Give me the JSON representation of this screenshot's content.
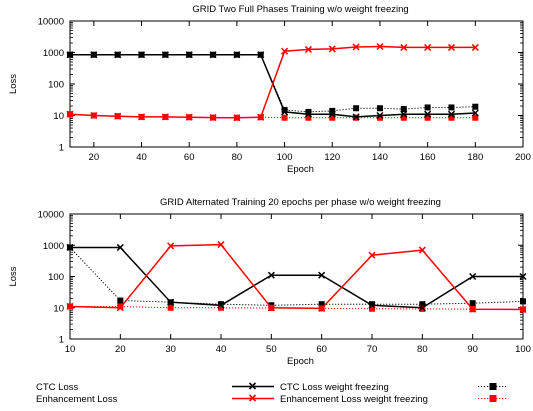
{
  "colors": {
    "ctc": "#000000",
    "enh": "#ff0000",
    "frame": "#000000"
  },
  "legend": {
    "left": [
      "CTC Loss",
      "Enhancement Loss"
    ],
    "right": [
      "CTC Loss weight freezing",
      "Enhancement Loss weight freezing"
    ]
  },
  "chart_data": [
    {
      "type": "line",
      "title": "GRID Two Full Phases Training w/o weight freezing",
      "xlabel": "Epoch",
      "ylabel": "Loss",
      "xlim": [
        10,
        200
      ],
      "ylim": [
        1,
        10000
      ],
      "yscale": "log",
      "xticks": [
        20,
        40,
        60,
        80,
        100,
        120,
        140,
        160,
        180,
        200
      ],
      "yticks": [
        1,
        10,
        100,
        1000,
        10000
      ],
      "ytick_labels": [
        "1",
        "10",
        "100",
        "1000",
        "10000"
      ],
      "grid": false,
      "series": [
        {
          "legend": "CTC Loss weight freezing",
          "color_key": "ctc",
          "style": "solid",
          "marker": "x",
          "x": [
            10,
            20,
            30,
            40,
            50,
            60,
            70,
            80,
            90,
            100,
            110,
            120,
            130,
            140,
            150,
            160,
            170,
            180
          ],
          "y": [
            850,
            850,
            850,
            850,
            850,
            850,
            850,
            850,
            850,
            13,
            11,
            11,
            9,
            10,
            11,
            11,
            11,
            12
          ]
        },
        {
          "legend": "Enhancement Loss weight freezing",
          "color_key": "enh",
          "style": "solid",
          "marker": "x",
          "x": [
            10,
            20,
            30,
            40,
            50,
            60,
            70,
            80,
            90,
            100,
            110,
            120,
            130,
            140,
            150,
            160,
            170,
            180
          ],
          "y": [
            11,
            10,
            9.5,
            9,
            9,
            8.8,
            8.6,
            8.5,
            8.8,
            1100,
            1250,
            1300,
            1500,
            1550,
            1450,
            1450,
            1450,
            1450
          ]
        },
        {
          "legend": "CTC Loss",
          "color_key": "ctc",
          "style": "dotted",
          "marker": "square",
          "x": [
            10,
            20,
            30,
            40,
            50,
            60,
            70,
            80,
            90,
            100,
            110,
            120,
            130,
            140,
            150,
            160,
            170,
            180
          ],
          "y": [
            850,
            850,
            850,
            850,
            850,
            850,
            850,
            850,
            850,
            15,
            13,
            14,
            17,
            17,
            16,
            18,
            18,
            19
          ]
        },
        {
          "legend": "Enhancement Loss",
          "color_key": "enh",
          "style": "dotted",
          "marker": "square",
          "x": [
            10,
            20,
            30,
            40,
            50,
            60,
            70,
            80,
            90,
            100,
            110,
            120,
            130,
            140,
            150,
            160,
            170,
            180
          ],
          "y": [
            11,
            10,
            9.5,
            9,
            9,
            8.8,
            8.6,
            8.5,
            8.8,
            8.5,
            8.5,
            8.5,
            8.5,
            8.5,
            8.5,
            8.5,
            8.5,
            8.5
          ]
        }
      ]
    },
    {
      "type": "line",
      "title": "GRID Alternated Training 20 epochs per phase w/o weight freezing",
      "xlabel": "Epoch",
      "ylabel": "Loss",
      "xlim": [
        10,
        100
      ],
      "ylim": [
        1,
        10000
      ],
      "yscale": "log",
      "xticks": [
        10,
        20,
        30,
        40,
        50,
        60,
        70,
        80,
        90,
        100
      ],
      "yticks": [
        1,
        10,
        100,
        1000,
        10000
      ],
      "ytick_labels": [
        "1",
        "10",
        "100",
        "1000",
        "10000"
      ],
      "grid": false,
      "series": [
        {
          "legend": "CTC Loss weight freezing",
          "color_key": "ctc",
          "style": "solid",
          "marker": "x",
          "x": [
            10,
            20,
            30,
            40,
            50,
            60,
            70,
            80,
            90,
            100
          ],
          "y": [
            850,
            850,
            15,
            12,
            110,
            110,
            12,
            10,
            100,
            100
          ]
        },
        {
          "legend": "Enhancement Loss weight freezing",
          "color_key": "enh",
          "style": "solid",
          "marker": "x",
          "x": [
            10,
            20,
            30,
            40,
            50,
            60,
            70,
            80,
            90,
            100
          ],
          "y": [
            11,
            10,
            950,
            1050,
            10,
            9.5,
            480,
            700,
            9,
            8.8
          ]
        },
        {
          "legend": "CTC Loss",
          "color_key": "ctc",
          "style": "dotted",
          "marker": "square",
          "x": [
            10,
            20,
            30,
            40,
            50,
            60,
            70,
            80,
            90,
            100
          ],
          "y": [
            850,
            17,
            15,
            13,
            12,
            13,
            13,
            13,
            14,
            16
          ]
        },
        {
          "legend": "Enhancement Loss",
          "color_key": "enh",
          "style": "dotted",
          "marker": "square",
          "x": [
            10,
            20,
            30,
            40,
            50,
            60,
            70,
            80,
            90,
            100
          ],
          "y": [
            11,
            11,
            10,
            10,
            9.8,
            9.5,
            9.3,
            9.2,
            9.0,
            8.8
          ]
        }
      ]
    }
  ]
}
